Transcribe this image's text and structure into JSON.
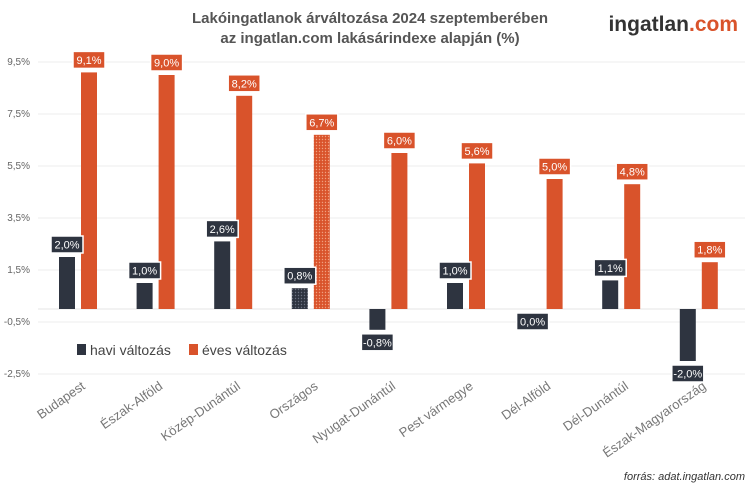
{
  "header": {
    "title_line1": "Lakóingatlanok árváltozása 2024 szeptemberében",
    "title_line2": "az ingatlan.com lakásárindexe alapján (%)",
    "logo_main": "ingatlan",
    "logo_suffix": ".com"
  },
  "source": "forrás: adat.ingatlan.com",
  "colors": {
    "havi": "#2e3440",
    "eves": "#d9532b",
    "logo_main": "#333333",
    "logo_suffix": "#d9532b"
  },
  "chart_data": {
    "type": "bar",
    "title": "Lakóingatlanok árváltozása 2024 szeptemberében az ingatlan.com lakásárindexe alapján (%)",
    "categories": [
      "Budapest",
      "Észak-Alföld",
      "Közép-Dunántúl",
      "Országos",
      "Nyugat-Dunántúl",
      "Pest vármegye",
      "Dél-Alföld",
      "Dél-Dunántúl",
      "Észak-Magyarország"
    ],
    "series": [
      {
        "name": "havi változás",
        "values": [
          2.0,
          1.0,
          2.6,
          0.8,
          -0.8,
          1.0,
          0.0,
          1.1,
          -2.0
        ],
        "labels": [
          "2,0%",
          "1,0%",
          "2,6%",
          "0,8%",
          "-0,8%",
          "1,0%",
          "0,0%",
          "1,1%",
          "-2,0%"
        ]
      },
      {
        "name": "éves változás",
        "values": [
          9.1,
          9.0,
          8.2,
          6.7,
          6.0,
          5.6,
          5.0,
          4.8,
          1.8
        ],
        "labels": [
          "9,1%",
          "9,0%",
          "8,2%",
          "6,7%",
          "6,0%",
          "5,6%",
          "5,0%",
          "4,8%",
          "1,8%"
        ]
      }
    ],
    "highlighted_category": "Országos",
    "yticks": [
      9.5,
      7.5,
      5.5,
      3.5,
      1.5,
      -0.5,
      -2.5
    ],
    "ytick_labels": [
      "9,5%",
      "7,5%",
      "5,5%",
      "3,5%",
      "1,5%",
      "-0,5%",
      "-2,5%"
    ],
    "ylim": [
      -2.8,
      10.2
    ],
    "grid": true,
    "legend_placement": "bottom-left inside"
  }
}
